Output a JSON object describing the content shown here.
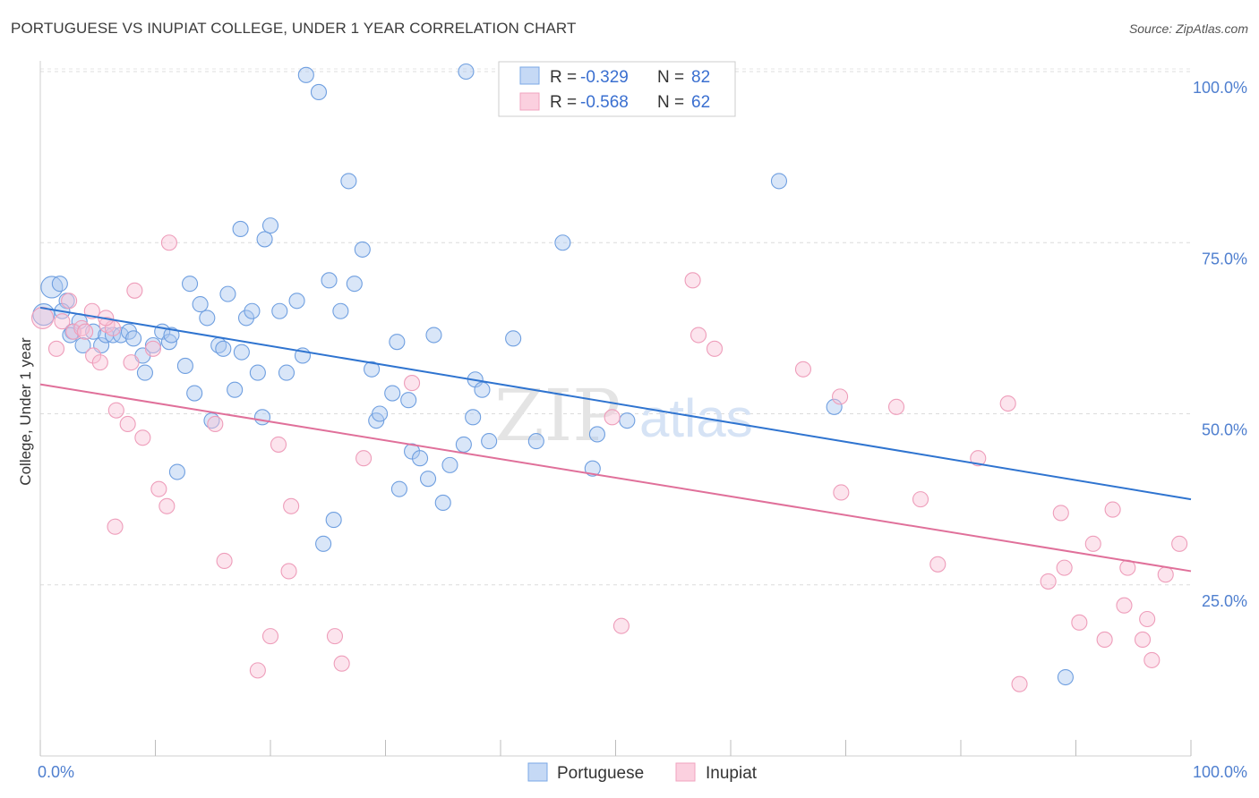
{
  "header": {
    "title": "PORTUGUESE VS INUPIAT COLLEGE, UNDER 1 YEAR CORRELATION CHART",
    "source": "Source: ZipAtlas.com"
  },
  "watermark": {
    "part1": "ZIP",
    "part2": "atlas"
  },
  "legend": {
    "rows": [
      {
        "r_label": "R = ",
        "r_value": "-0.329",
        "n_label": "N = ",
        "n_value": "82"
      },
      {
        "r_label": "R = ",
        "r_value": "-0.568",
        "n_label": "N = ",
        "n_value": "62"
      }
    ]
  },
  "chart_data": {
    "type": "scatter",
    "title": "PORTUGUESE VS INUPIAT COLLEGE, UNDER 1 YEAR CORRELATION CHART",
    "xlabel": "",
    "ylabel": "College, Under 1 year",
    "xlim": [
      0,
      100
    ],
    "ylim": [
      0,
      100
    ],
    "x_tick_labels": [
      "0.0%",
      "100.0%"
    ],
    "y_tick_labels": [
      "25.0%",
      "50.0%",
      "75.0%",
      "100.0%"
    ],
    "y_ticks": [
      25,
      50,
      75,
      100
    ],
    "grid": true,
    "legend_position": "top-center",
    "series": [
      {
        "name": "Portuguese",
        "color": "#8ab4e8",
        "line_color": "#2f74d0",
        "r": -0.329,
        "n": 82,
        "trend": {
          "x": [
            0,
            100
          ],
          "y": [
            65.5,
            37.5
          ]
        },
        "points": [
          [
            0.3,
            64.5
          ],
          [
            1.0,
            68.5
          ],
          [
            1.7,
            69.0
          ],
          [
            2.3,
            66.5
          ],
          [
            3.4,
            63.5
          ],
          [
            2.8,
            62.0
          ],
          [
            3.7,
            60.0
          ],
          [
            4.6,
            62.0
          ],
          [
            5.3,
            60.0
          ],
          [
            5.7,
            61.5
          ],
          [
            6.3,
            61.5
          ],
          [
            7.0,
            61.5
          ],
          [
            7.7,
            62.0
          ],
          [
            8.1,
            61.0
          ],
          [
            8.9,
            58.5
          ],
          [
            9.1,
            56.0
          ],
          [
            9.8,
            60.0
          ],
          [
            10.6,
            62.0
          ],
          [
            11.2,
            60.5
          ],
          [
            11.4,
            61.5
          ],
          [
            11.9,
            41.5
          ],
          [
            12.6,
            57.0
          ],
          [
            13.0,
            69.0
          ],
          [
            13.4,
            53.0
          ],
          [
            13.9,
            66.0
          ],
          [
            14.5,
            64.0
          ],
          [
            14.9,
            49.0
          ],
          [
            15.5,
            60.0
          ],
          [
            15.9,
            59.5
          ],
          [
            16.3,
            67.5
          ],
          [
            16.9,
            53.5
          ],
          [
            17.4,
            77.0
          ],
          [
            17.9,
            64.0
          ],
          [
            18.4,
            65.0
          ],
          [
            18.9,
            56.0
          ],
          [
            19.3,
            49.5
          ],
          [
            19.5,
            75.5
          ],
          [
            20.0,
            77.5
          ],
          [
            20.8,
            65.0
          ],
          [
            21.4,
            56.0
          ],
          [
            22.3,
            66.5
          ],
          [
            22.8,
            58.5
          ],
          [
            23.1,
            99.5
          ],
          [
            24.2,
            97.0
          ],
          [
            24.6,
            31.0
          ],
          [
            25.1,
            69.5
          ],
          [
            25.5,
            34.5
          ],
          [
            26.1,
            65.0
          ],
          [
            26.8,
            84.0
          ],
          [
            27.3,
            69.0
          ],
          [
            28.0,
            74.0
          ],
          [
            28.8,
            56.5
          ],
          [
            29.2,
            49.0
          ],
          [
            29.5,
            50.0
          ],
          [
            30.6,
            53.0
          ],
          [
            31.0,
            60.5
          ],
          [
            31.2,
            39.0
          ],
          [
            32.0,
            52.0
          ],
          [
            32.3,
            44.5
          ],
          [
            33.0,
            43.5
          ],
          [
            33.7,
            40.5
          ],
          [
            34.2,
            61.5
          ],
          [
            35.0,
            37.0
          ],
          [
            35.6,
            42.5
          ],
          [
            36.8,
            45.5
          ],
          [
            37.6,
            49.5
          ],
          [
            37.8,
            55.0
          ],
          [
            38.4,
            53.5
          ],
          [
            39.0,
            46.0
          ],
          [
            37.0,
            100.0
          ],
          [
            41.1,
            61.0
          ],
          [
            43.1,
            46.0
          ],
          [
            45.4,
            75.0
          ],
          [
            48.4,
            47.0
          ],
          [
            48.0,
            42.0
          ],
          [
            51.0,
            49.0
          ],
          [
            64.2,
            84.0
          ],
          [
            69.0,
            51.0
          ],
          [
            89.1,
            11.5
          ],
          [
            1.9,
            65.0
          ],
          [
            2.6,
            61.5
          ],
          [
            17.5,
            59.0
          ]
        ]
      },
      {
        "name": "Inupiat",
        "color": "#f4a9c2",
        "line_color": "#e0709a",
        "r": -0.568,
        "n": 62,
        "trend": {
          "x": [
            0,
            100
          ],
          "y": [
            54.3,
            27.0
          ]
        },
        "points": [
          [
            0.2,
            64.0
          ],
          [
            1.4,
            59.5
          ],
          [
            1.9,
            63.5
          ],
          [
            2.5,
            66.5
          ],
          [
            2.9,
            62.0
          ],
          [
            3.6,
            62.5
          ],
          [
            3.9,
            62.0
          ],
          [
            4.6,
            58.5
          ],
          [
            5.2,
            57.5
          ],
          [
            5.8,
            63.0
          ],
          [
            6.3,
            62.5
          ],
          [
            6.5,
            33.5
          ],
          [
            6.6,
            50.5
          ],
          [
            7.6,
            48.5
          ],
          [
            7.9,
            57.5
          ],
          [
            8.2,
            68.0
          ],
          [
            8.9,
            46.5
          ],
          [
            9.8,
            59.5
          ],
          [
            10.3,
            39.0
          ],
          [
            11.0,
            36.5
          ],
          [
            11.2,
            75.0
          ],
          [
            15.2,
            48.5
          ],
          [
            16.0,
            28.5
          ],
          [
            18.9,
            12.5
          ],
          [
            20.0,
            17.5
          ],
          [
            20.7,
            45.5
          ],
          [
            21.6,
            27.0
          ],
          [
            21.8,
            36.5
          ],
          [
            25.6,
            17.5
          ],
          [
            26.2,
            13.5
          ],
          [
            28.1,
            43.5
          ],
          [
            32.3,
            54.5
          ],
          [
            4.5,
            65.0
          ],
          [
            5.7,
            64.0
          ],
          [
            49.7,
            49.5
          ],
          [
            50.5,
            19.0
          ],
          [
            56.7,
            69.5
          ],
          [
            57.2,
            61.5
          ],
          [
            58.6,
            59.5
          ],
          [
            66.3,
            56.5
          ],
          [
            69.5,
            52.5
          ],
          [
            69.6,
            38.5
          ],
          [
            74.4,
            51.0
          ],
          [
            76.5,
            37.5
          ],
          [
            78.0,
            28.0
          ],
          [
            81.5,
            43.5
          ],
          [
            84.1,
            51.5
          ],
          [
            85.1,
            10.5
          ],
          [
            87.6,
            25.5
          ],
          [
            88.7,
            35.5
          ],
          [
            89.0,
            27.5
          ],
          [
            90.3,
            19.5
          ],
          [
            91.5,
            31.0
          ],
          [
            92.5,
            17.0
          ],
          [
            93.2,
            36.0
          ],
          [
            94.2,
            22.0
          ],
          [
            94.5,
            27.5
          ],
          [
            95.8,
            17.0
          ],
          [
            96.2,
            20.0
          ],
          [
            96.6,
            14.0
          ],
          [
            97.8,
            26.5
          ],
          [
            99.0,
            31.0
          ]
        ]
      }
    ]
  },
  "bottom_legend": {
    "items": [
      {
        "label": "Portuguese"
      },
      {
        "label": "Inupiat"
      }
    ]
  }
}
